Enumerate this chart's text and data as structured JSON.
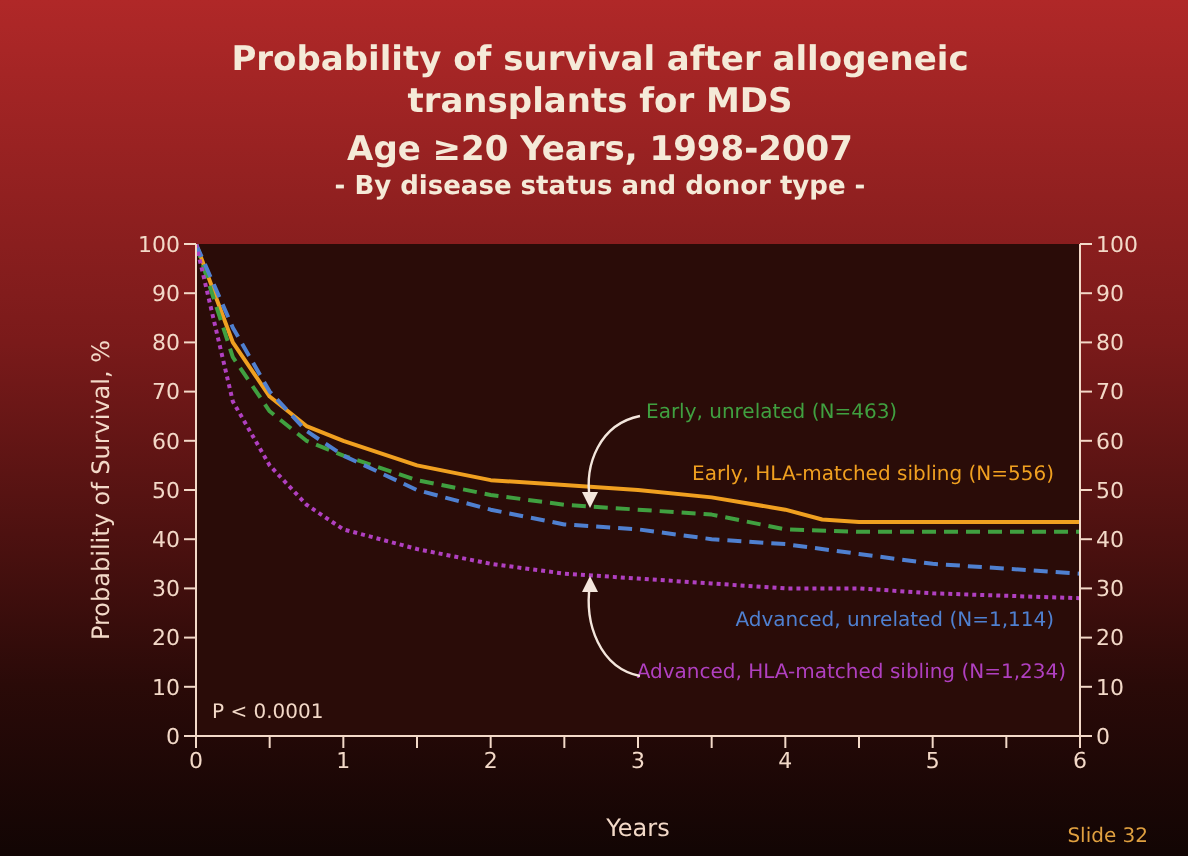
{
  "chart_data": {
    "type": "line",
    "title": "Probability of survival after allogeneic transplants for MDS",
    "subtitle": "Age ≥20 Years, 1998-2007\n- By disease status and donor type -",
    "xlabel": "Years",
    "ylabel": "Probability of Survival, %",
    "annotations": [
      "P < 0.0001",
      "Slide 32"
    ],
    "xlim": [
      0,
      6
    ],
    "xticks": [
      0,
      {
        "value": 0.5,
        "label": null
      },
      1,
      {
        "value": 1.5,
        "label": null
      },
      2,
      {
        "value": 2.5,
        "label": null
      },
      3,
      {
        "value": 3.5,
        "label": null
      },
      4,
      {
        "value": 4.5,
        "label": null
      },
      5,
      {
        "value": 5.5,
        "label": null
      },
      6
    ],
    "ylim": [
      0,
      100
    ],
    "yticks": [
      0,
      10,
      20,
      30,
      40,
      50,
      60,
      70,
      80,
      90,
      100
    ],
    "y2lim": [
      0,
      100
    ],
    "y2ticks": [
      0,
      10,
      20,
      30,
      40,
      50,
      60,
      70,
      80,
      90,
      100
    ],
    "marker": "none",
    "series": [
      {
        "name": "Early, HLA-matched sibling (N=556)",
        "color": "#f0a020",
        "line_style": "solid",
        "x": [
          0,
          0.25,
          0.5,
          0.75,
          1,
          1.5,
          2,
          2.5,
          3,
          3.5,
          4,
          4.25,
          4.5,
          6
        ],
        "values": [
          100,
          80,
          69,
          63,
          60,
          55,
          52,
          51,
          50,
          48.5,
          46,
          44,
          43.5,
          43.5
        ]
      },
      {
        "name": "Early, unrelated (N=463)",
        "color": "#40a040",
        "line_style": "dashed",
        "x": [
          0,
          0.25,
          0.5,
          0.75,
          1,
          1.5,
          2,
          2.5,
          3,
          3.5,
          4,
          4.5,
          6
        ],
        "values": [
          100,
          77,
          66,
          60,
          57,
          52,
          49,
          47,
          46,
          45,
          42,
          41.5,
          41.5
        ]
      },
      {
        "name": "Advanced, unrelated (N=1,114)",
        "color": "#4f80d0",
        "line_style": "dashed",
        "x": [
          0,
          0.25,
          0.5,
          0.75,
          1,
          1.5,
          2,
          2.5,
          3,
          3.5,
          4,
          4.5,
          5,
          5.5,
          6
        ],
        "values": [
          100,
          83,
          70,
          62,
          57,
          50,
          46,
          43,
          42,
          40,
          39,
          37,
          35,
          34,
          33
        ]
      },
      {
        "name": "Advanced, HLA-matched sibling (N=1,234)",
        "color": "#b040c0",
        "line_style": "dotted",
        "x": [
          0,
          0.25,
          0.5,
          0.75,
          1,
          1.5,
          2,
          2.5,
          3,
          3.5,
          4,
          4.5,
          5,
          6
        ],
        "values": [
          100,
          68,
          55,
          47,
          42,
          38,
          35,
          33,
          32,
          31,
          30,
          30,
          29,
          28
        ]
      }
    ]
  }
}
